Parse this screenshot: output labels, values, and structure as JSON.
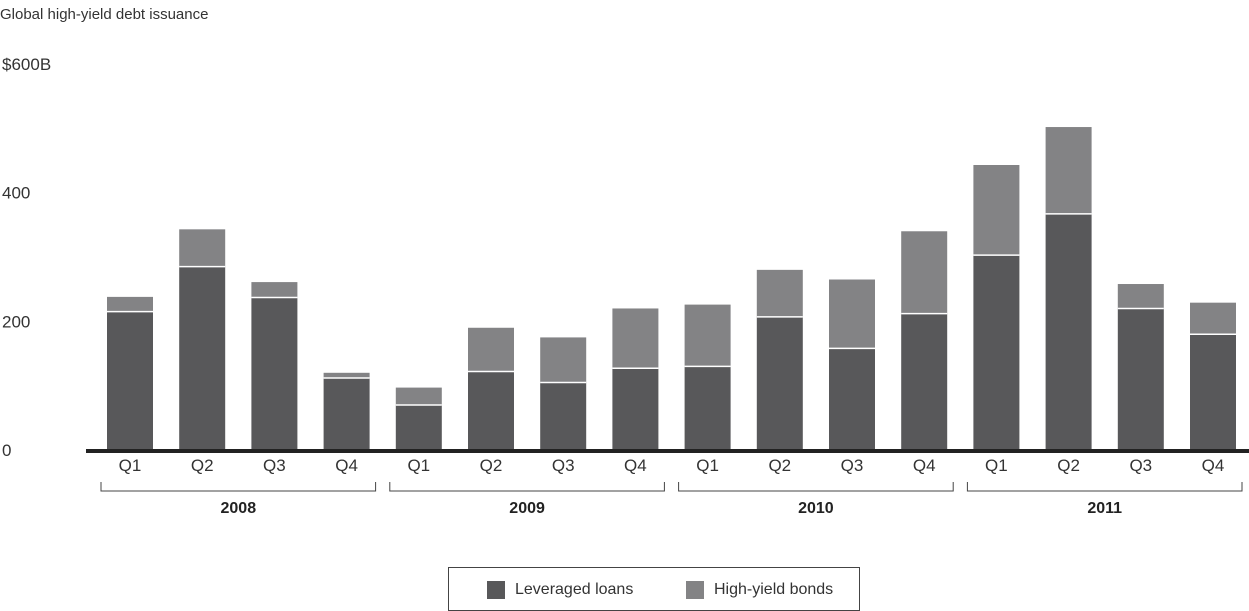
{
  "chart_data": {
    "type": "bar",
    "stacked": true,
    "title": "Global high-yield debt issuance",
    "ylim": [
      0,
      600
    ],
    "yticks": [
      {
        "value": 600,
        "label": "$600B"
      },
      {
        "value": 400,
        "label": "400"
      },
      {
        "value": 200,
        "label": "200"
      },
      {
        "value": 0,
        "label": "0"
      }
    ],
    "categories": [
      "Q1",
      "Q2",
      "Q3",
      "Q4",
      "Q1",
      "Q2",
      "Q3",
      "Q4",
      "Q1",
      "Q2",
      "Q3",
      "Q4",
      "Q1",
      "Q2",
      "Q3",
      "Q4"
    ],
    "groups": [
      {
        "label": "2008",
        "start": 0,
        "end": 3
      },
      {
        "label": "2009",
        "start": 4,
        "end": 7
      },
      {
        "label": "2010",
        "start": 8,
        "end": 11
      },
      {
        "label": "2011",
        "start": 12,
        "end": 15
      }
    ],
    "series": [
      {
        "name": "Leveraged loans",
        "color": "#58585a",
        "values": [
          215,
          285,
          237,
          112,
          70,
          122,
          105,
          127,
          130,
          207,
          158,
          212,
          303,
          367,
          220,
          180
        ]
      },
      {
        "name": "High-yield bonds",
        "color": "#838385",
        "values": [
          23,
          58,
          24,
          8,
          27,
          68,
          70,
          93,
          96,
          73,
          107,
          128,
          140,
          135,
          38,
          49
        ]
      }
    ],
    "legend": "bottom-center",
    "grid": false
  }
}
